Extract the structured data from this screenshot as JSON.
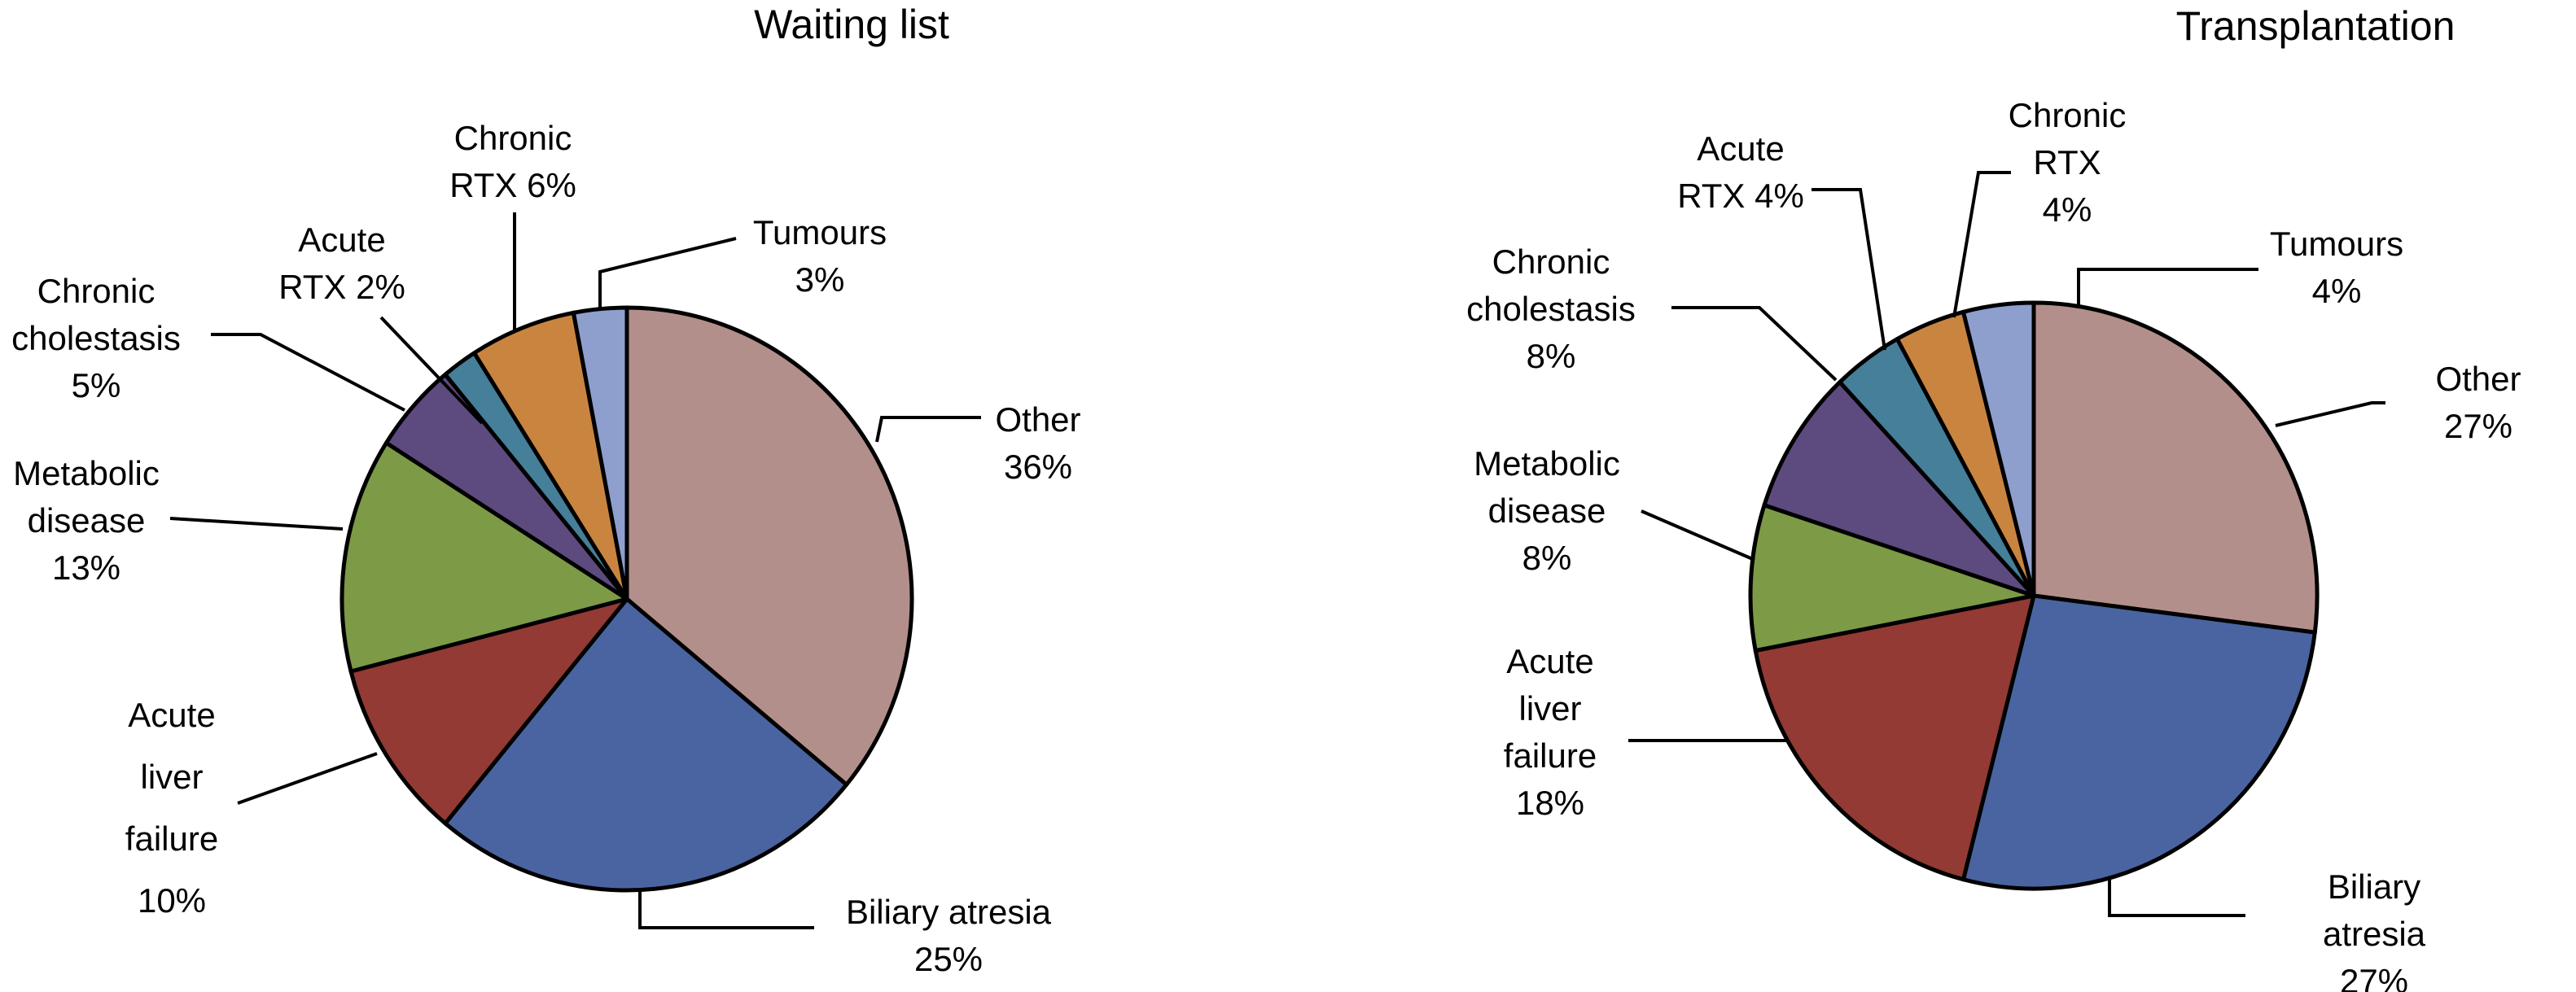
{
  "figure": {
    "background_color": "#ffffff",
    "text_color": "#000000",
    "outline_color": "#000000"
  },
  "chart_data": [
    {
      "type": "pie",
      "title": "Waiting list",
      "legend_position": "none",
      "label_style": "callout-with-leader-lines",
      "start_angle_deg": 0,
      "direction": "clockwise",
      "values_unit": "%",
      "categories": [
        "Other",
        "Biliary atresia",
        "Acute liver failure",
        "Metabolic disease",
        "Chronic cholestasis",
        "Acute RTX",
        "Chronic RTX",
        "Tumours"
      ],
      "values": [
        36,
        25,
        10,
        13,
        5,
        2,
        6,
        3
      ],
      "slices": [
        {
          "name": "Other",
          "pct": 36,
          "color": "#b38f8c",
          "display": "Other\n36%"
        },
        {
          "name": "Biliary atresia",
          "pct": 25,
          "color": "#4a64a1",
          "display": "Biliary atresia\n25%"
        },
        {
          "name": "Acute liver failure",
          "pct": 10,
          "color": "#923a33",
          "display": "Acute\nliver\nfailure\n10%"
        },
        {
          "name": "Metabolic disease",
          "pct": 13,
          "color": "#7d9a47",
          "display": "Metabolic\ndisease\n13%"
        },
        {
          "name": "Chronic cholestasis",
          "pct": 5,
          "color": "#5d4a7e",
          "display": "Chronic\ncholestasis\n5%"
        },
        {
          "name": "Acute RTX",
          "pct": 2,
          "color": "#457f99",
          "display": "Acute\nRTX 2%"
        },
        {
          "name": "Chronic RTX",
          "pct": 6,
          "color": "#c98540",
          "display": "Chronic\nRTX 6%"
        },
        {
          "name": "Tumours",
          "pct": 3,
          "color": "#8e9fce",
          "display": "Tumours\n3%"
        }
      ]
    },
    {
      "type": "pie",
      "title": "Transplantation",
      "legend_position": "none",
      "label_style": "callout-with-leader-lines",
      "start_angle_deg": 0,
      "direction": "clockwise",
      "values_unit": "%",
      "categories": [
        "Other",
        "Biliary atresia",
        "Acute liver failure",
        "Metabolic disease",
        "Chronic cholestasis",
        "Acute RTX",
        "Chronic RTX",
        "Tumours"
      ],
      "values": [
        27,
        27,
        18,
        8,
        8,
        4,
        4,
        4
      ],
      "slices": [
        {
          "name": "Other",
          "pct": 27,
          "color": "#b38f8c",
          "display": "Other 27%"
        },
        {
          "name": "Biliary atresia",
          "pct": 27,
          "color": "#4a64a1",
          "display": "Biliary atresia\n27%"
        },
        {
          "name": "Acute liver failure",
          "pct": 18,
          "color": "#923a33",
          "display": "Acute\nliver\nfailure\n18%"
        },
        {
          "name": "Metabolic disease",
          "pct": 8,
          "color": "#7d9a47",
          "display": "Metabolic\ndisease\n8%"
        },
        {
          "name": "Chronic cholestasis",
          "pct": 8,
          "color": "#5d4a7e",
          "display": "Chronic\ncholestasis\n8%"
        },
        {
          "name": "Acute RTX",
          "pct": 4,
          "color": "#457f99",
          "display": "Acute\nRTX 4%"
        },
        {
          "name": "Chronic RTX",
          "pct": 4,
          "color": "#c98540",
          "display": "Chronic\nRTX\n4%"
        },
        {
          "name": "Tumours",
          "pct": 4,
          "color": "#8e9fce",
          "display": "Tumours\n4%"
        }
      ]
    }
  ]
}
